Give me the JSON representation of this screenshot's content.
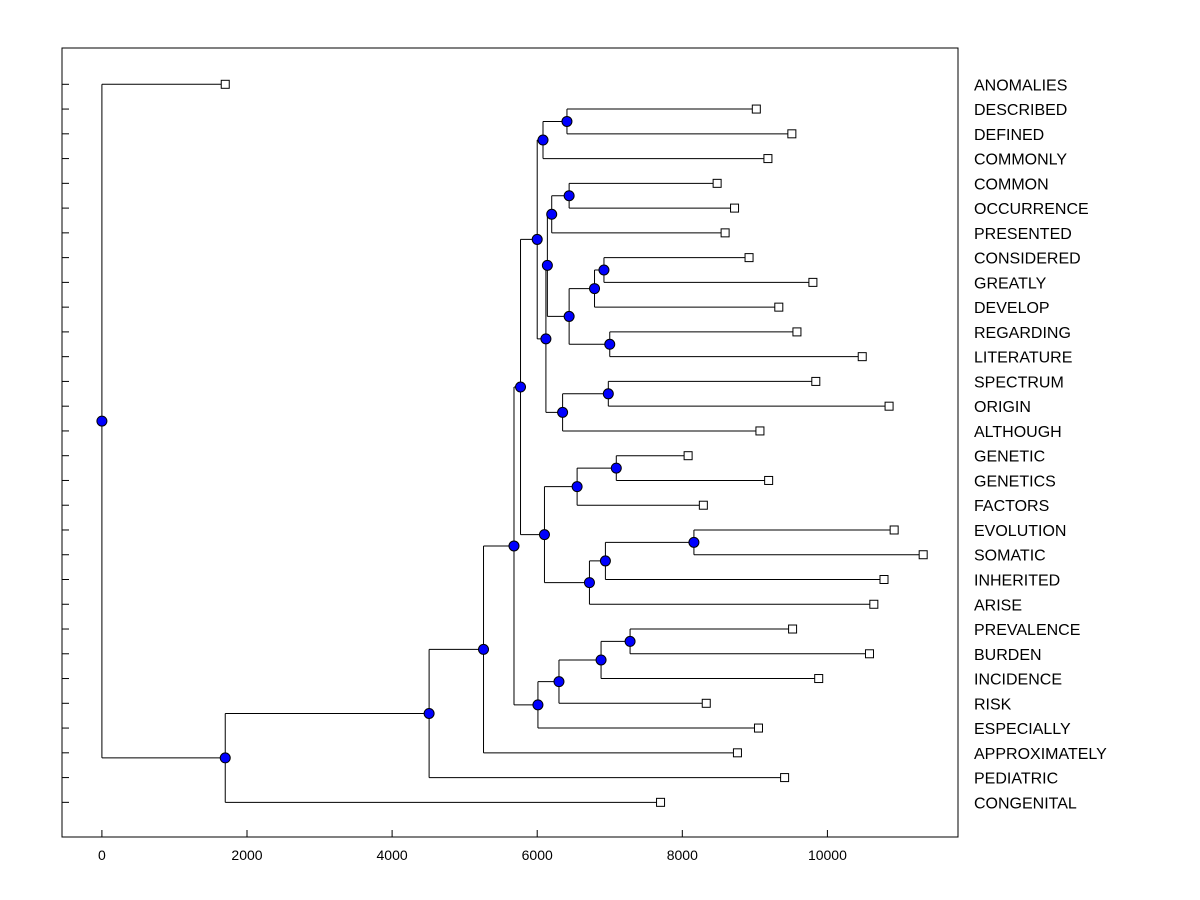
{
  "chart_data": {
    "type": "dendrogram",
    "title": "",
    "xlabel": "",
    "ylabel": "",
    "xlim": [
      -550,
      11800
    ],
    "xticks": [
      0,
      2000,
      4000,
      6000,
      8000,
      10000
    ],
    "xtick_labels": [
      "0",
      "2000",
      "4000",
      "6000",
      "8000",
      "10000"
    ],
    "leaves": [
      {
        "label": "ANOMALIES",
        "x": 1700
      },
      {
        "label": "DESCRIBED",
        "x": 9020
      },
      {
        "label": "DEFINED",
        "x": 9510
      },
      {
        "label": "COMMONLY",
        "x": 9180
      },
      {
        "label": "COMMON",
        "x": 8480
      },
      {
        "label": "OCCURRENCE",
        "x": 8720
      },
      {
        "label": "PRESENTED",
        "x": 8590
      },
      {
        "label": "CONSIDERED",
        "x": 8920
      },
      {
        "label": "GREATLY",
        "x": 9800
      },
      {
        "label": "DEVELOP",
        "x": 9330
      },
      {
        "label": "REGARDING",
        "x": 9580
      },
      {
        "label": "LITERATURE",
        "x": 10480
      },
      {
        "label": "SPECTRUM",
        "x": 9840
      },
      {
        "label": "ORIGIN",
        "x": 10850
      },
      {
        "label": "ALTHOUGH",
        "x": 9070
      },
      {
        "label": "GENETIC",
        "x": 8080
      },
      {
        "label": "GENETICS",
        "x": 9190
      },
      {
        "label": "FACTORS",
        "x": 8290
      },
      {
        "label": "EVOLUTION",
        "x": 10920
      },
      {
        "label": "SOMATIC",
        "x": 11320
      },
      {
        "label": "INHERITED",
        "x": 10780
      },
      {
        "label": "ARISE",
        "x": 10640
      },
      {
        "label": "PREVALENCE",
        "x": 9520
      },
      {
        "label": "BURDEN",
        "x": 10580
      },
      {
        "label": "INCIDENCE",
        "x": 9880
      },
      {
        "label": "RISK",
        "x": 8330
      },
      {
        "label": "ESPECIALLY",
        "x": 9050
      },
      {
        "label": "APPROXIMATELY",
        "x": 8760
      },
      {
        "label": "PEDIATRIC",
        "x": 9410
      },
      {
        "label": "CONGENITAL",
        "x": 7700
      }
    ],
    "merges": [
      {
        "id": "m_describe",
        "x": 6410,
        "children": [
          "L1",
          "L2"
        ]
      },
      {
        "id": "m_commonly",
        "x": 6080,
        "children": [
          "m_describe",
          "L3"
        ]
      },
      {
        "id": "m_common",
        "x": 6440,
        "children": [
          "L4",
          "L5"
        ]
      },
      {
        "id": "m_presented",
        "x": 6200,
        "children": [
          "m_common",
          "L6"
        ]
      },
      {
        "id": "m_considered",
        "x": 6920,
        "children": [
          "L7",
          "L8"
        ]
      },
      {
        "id": "m_develop",
        "x": 6790,
        "children": [
          "m_considered",
          "L9"
        ]
      },
      {
        "id": "m_regarding",
        "x": 7000,
        "children": [
          "L10",
          "L11"
        ]
      },
      {
        "id": "m_develop_reg",
        "x": 6440,
        "children": [
          "m_develop",
          "m_regarding"
        ]
      },
      {
        "id": "m_pres_dev",
        "x": 6140,
        "children": [
          "m_presented",
          "m_develop_reg"
        ]
      },
      {
        "id": "m_spectrum",
        "x": 6980,
        "children": [
          "L12",
          "L13"
        ]
      },
      {
        "id": "m_although",
        "x": 6350,
        "children": [
          "m_spectrum",
          "L14"
        ]
      },
      {
        "id": "m_block_b",
        "x": 6120,
        "children": [
          "m_pres_dev",
          "m_although"
        ]
      },
      {
        "id": "m_block_ab",
        "x": 6000,
        "children": [
          "m_commonly",
          "m_block_b"
        ]
      },
      {
        "id": "m_genetic",
        "x": 7090,
        "children": [
          "L15",
          "L16"
        ]
      },
      {
        "id": "m_factors",
        "x": 6550,
        "children": [
          "m_genetic",
          "L17"
        ]
      },
      {
        "id": "m_evolution",
        "x": 8160,
        "children": [
          "L18",
          "L19"
        ]
      },
      {
        "id": "m_inherited",
        "x": 6940,
        "children": [
          "m_evolution",
          "L20"
        ]
      },
      {
        "id": "m_arise",
        "x": 6720,
        "children": [
          "m_inherited",
          "L21"
        ]
      },
      {
        "id": "m_block_c",
        "x": 6100,
        "children": [
          "m_factors",
          "m_arise"
        ]
      },
      {
        "id": "m_block_abc",
        "x": 5770,
        "children": [
          "m_block_ab",
          "m_block_c"
        ]
      },
      {
        "id": "m_prevalence",
        "x": 7280,
        "children": [
          "L22",
          "L23"
        ]
      },
      {
        "id": "m_incidence",
        "x": 6880,
        "children": [
          "m_prevalence",
          "L24"
        ]
      },
      {
        "id": "m_risk",
        "x": 6300,
        "children": [
          "m_incidence",
          "L25"
        ]
      },
      {
        "id": "m_especially",
        "x": 6010,
        "children": [
          "m_risk",
          "L26"
        ]
      },
      {
        "id": "m_block_abcd",
        "x": 5680,
        "children": [
          "m_block_abc",
          "m_especially"
        ]
      },
      {
        "id": "m_approx",
        "x": 5260,
        "children": [
          "m_block_abcd",
          "L27"
        ]
      },
      {
        "id": "m_pediatric",
        "x": 4510,
        "children": [
          "m_approx",
          "L28"
        ]
      },
      {
        "id": "m_congenital",
        "x": 1700,
        "children": [
          "m_pediatric",
          "L29"
        ]
      },
      {
        "id": "m_root",
        "x": 0,
        "children": [
          "L0",
          "m_congenital"
        ]
      }
    ],
    "colors": {
      "node": "#0000ff",
      "line": "#000000",
      "leaf": "#ffffff"
    }
  }
}
